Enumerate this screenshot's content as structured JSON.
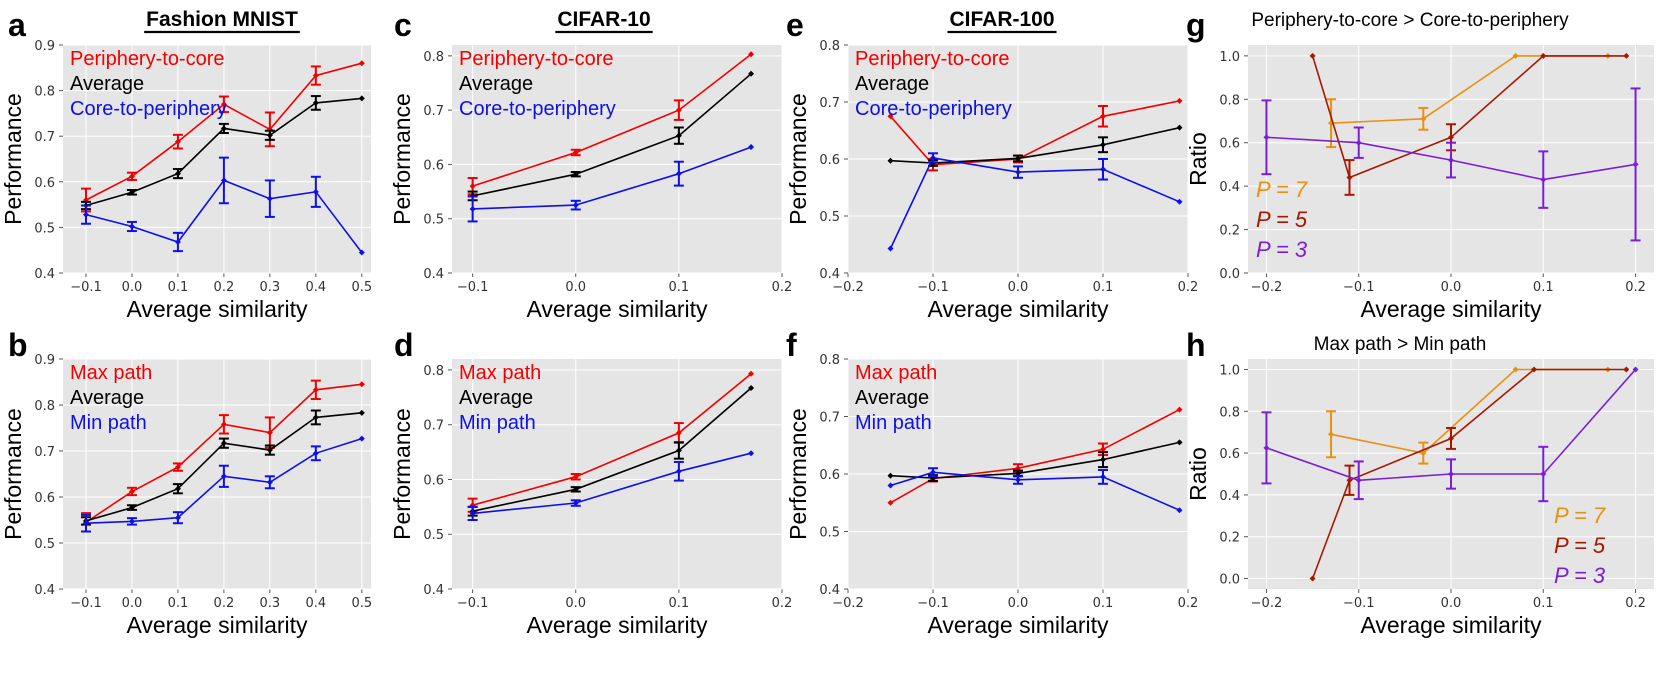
{
  "colors": {
    "red": "#f20000",
    "black": "#000000",
    "blue": "#0f0fe8",
    "p7": "#e8900f",
    "p5": "#a61900",
    "p3": "#7a1fd6"
  },
  "chart_data": [
    {
      "id": "a",
      "panel_letter": "a",
      "type": "line",
      "title": "Fashion MNIST",
      "title_style": "bold-underlined",
      "xlabel": "Average similarity",
      "ylabel": "Performance",
      "xlim": [
        -0.15,
        0.52
      ],
      "ylim": [
        0.4,
        0.9
      ],
      "xticks": [
        -0.1,
        0.0,
        0.1,
        0.2,
        0.3,
        0.4,
        0.5
      ],
      "xtick_labels": [
        "−0.1",
        "0.0",
        "0.1",
        "0.2",
        "0.3",
        "0.4",
        "0.5"
      ],
      "yticks": [
        0.4,
        0.5,
        0.6,
        0.7,
        0.8,
        0.9
      ],
      "ytick_labels": [
        "0.4",
        "0.5",
        "0.6",
        "0.7",
        "0.8",
        "0.9"
      ],
      "legend": {
        "position": "top-left",
        "items": [
          {
            "label": "Periphery-to-core",
            "color": "red"
          },
          {
            "label": "Average",
            "color": "black"
          },
          {
            "label": "Core-to-periphery",
            "color": "blue"
          }
        ]
      },
      "series": [
        {
          "name": "Periphery-to-core",
          "color": "red",
          "x": [
            -0.1,
            0.0,
            0.1,
            0.2,
            0.3,
            0.4,
            0.5
          ],
          "y": [
            0.56,
            0.612,
            0.688,
            0.77,
            0.715,
            0.833,
            0.86
          ],
          "err": [
            0.025,
            0.008,
            0.015,
            0.017,
            0.037,
            0.02,
            null
          ]
        },
        {
          "name": "Average",
          "color": "black",
          "x": [
            -0.1,
            0.0,
            0.1,
            0.2,
            0.3,
            0.4,
            0.5
          ],
          "y": [
            0.548,
            0.577,
            0.618,
            0.717,
            0.702,
            0.773,
            0.783
          ],
          "err": [
            0.008,
            0.005,
            0.01,
            0.01,
            0.01,
            0.015,
            null
          ]
        },
        {
          "name": "Core-to-periphery",
          "color": "blue",
          "x": [
            -0.1,
            0.0,
            0.1,
            0.2,
            0.3,
            0.4,
            0.5
          ],
          "y": [
            0.528,
            0.502,
            0.468,
            0.603,
            0.563,
            0.578,
            0.445
          ],
          "err": [
            0.02,
            0.01,
            0.02,
            0.05,
            0.04,
            0.033,
            null
          ]
        }
      ]
    },
    {
      "id": "b",
      "panel_letter": "b",
      "type": "line",
      "title": "",
      "title_style": "none",
      "xlabel": "Average similarity",
      "ylabel": "Performance",
      "xlim": [
        -0.15,
        0.52
      ],
      "ylim": [
        0.4,
        0.9
      ],
      "xticks": [
        -0.1,
        0.0,
        0.1,
        0.2,
        0.3,
        0.4,
        0.5
      ],
      "xtick_labels": [
        "−0.1",
        "0.0",
        "0.1",
        "0.2",
        "0.3",
        "0.4",
        "0.5"
      ],
      "yticks": [
        0.4,
        0.5,
        0.6,
        0.7,
        0.8,
        0.9
      ],
      "ytick_labels": [
        "0.4",
        "0.5",
        "0.6",
        "0.7",
        "0.8",
        "0.9"
      ],
      "legend": {
        "position": "top-left",
        "items": [
          {
            "label": "Max path",
            "color": "red"
          },
          {
            "label": "Average",
            "color": "black"
          },
          {
            "label": "Min path",
            "color": "blue"
          }
        ]
      },
      "series": [
        {
          "name": "Max path",
          "color": "red",
          "x": [
            -0.1,
            0.0,
            0.1,
            0.2,
            0.3,
            0.4,
            0.5
          ],
          "y": [
            0.545,
            0.612,
            0.665,
            0.758,
            0.74,
            0.833,
            0.845
          ],
          "err": [
            0.02,
            0.008,
            0.008,
            0.02,
            0.033,
            0.02,
            null
          ]
        },
        {
          "name": "Average",
          "color": "black",
          "x": [
            -0.1,
            0.0,
            0.1,
            0.2,
            0.3,
            0.4,
            0.5
          ],
          "y": [
            0.548,
            0.577,
            0.618,
            0.717,
            0.702,
            0.773,
            0.783
          ],
          "err": [
            0.008,
            0.005,
            0.01,
            0.01,
            0.01,
            0.015,
            null
          ]
        },
        {
          "name": "Min path",
          "color": "blue",
          "x": [
            -0.1,
            0.0,
            0.1,
            0.2,
            0.3,
            0.4,
            0.5
          ],
          "y": [
            0.543,
            0.547,
            0.555,
            0.645,
            0.632,
            0.695,
            0.727
          ],
          "err": [
            0.018,
            0.007,
            0.012,
            0.023,
            0.013,
            0.015,
            null
          ]
        }
      ]
    },
    {
      "id": "c",
      "panel_letter": "c",
      "type": "line",
      "title": "CIFAR-10",
      "title_style": "bold-underlined",
      "xlabel": "Average similarity",
      "ylabel": "Performance",
      "xlim": [
        -0.12,
        0.2
      ],
      "ylim": [
        0.4,
        0.82
      ],
      "xticks": [
        -0.1,
        0.0,
        0.1,
        0.2
      ],
      "xtick_labels": [
        "−0.1",
        "0.0",
        "0.1",
        "0.2"
      ],
      "yticks": [
        0.4,
        0.5,
        0.6,
        0.7,
        0.8
      ],
      "ytick_labels": [
        "0.4",
        "0.5",
        "0.6",
        "0.7",
        "0.8"
      ],
      "legend": {
        "position": "top-left",
        "items": [
          {
            "label": "Periphery-to-core",
            "color": "red"
          },
          {
            "label": "Average",
            "color": "black"
          },
          {
            "label": "Core-to-periphery",
            "color": "blue"
          }
        ]
      },
      "series": [
        {
          "name": "Periphery-to-core",
          "color": "red",
          "x": [
            -0.1,
            0.0,
            0.1,
            0.17
          ],
          "y": [
            0.56,
            0.622,
            0.7,
            0.803
          ],
          "err": [
            0.015,
            0.005,
            0.018,
            null
          ]
        },
        {
          "name": "Average",
          "color": "black",
          "x": [
            -0.1,
            0.0,
            0.1,
            0.17
          ],
          "y": [
            0.542,
            0.582,
            0.653,
            0.767
          ],
          "err": [
            0.008,
            0.004,
            0.015,
            null
          ]
        },
        {
          "name": "Core-to-periphery",
          "color": "blue",
          "x": [
            -0.1,
            0.0,
            0.1,
            0.17
          ],
          "y": [
            0.518,
            0.525,
            0.583,
            0.632
          ],
          "err": [
            0.023,
            0.008,
            0.022,
            null
          ]
        }
      ]
    },
    {
      "id": "d",
      "panel_letter": "d",
      "type": "line",
      "title": "",
      "title_style": "none",
      "xlabel": "Average similarity",
      "ylabel": "Performance",
      "xlim": [
        -0.12,
        0.2
      ],
      "ylim": [
        0.4,
        0.82
      ],
      "xticks": [
        -0.1,
        0.0,
        0.1,
        0.2
      ],
      "xtick_labels": [
        "−0.1",
        "0.0",
        "0.1",
        "0.2"
      ],
      "yticks": [
        0.4,
        0.5,
        0.6,
        0.7,
        0.8
      ],
      "ytick_labels": [
        "0.4",
        "0.5",
        "0.6",
        "0.7",
        "0.8"
      ],
      "legend": {
        "position": "top-left",
        "items": [
          {
            "label": "Max path",
            "color": "red"
          },
          {
            "label": "Average",
            "color": "black"
          },
          {
            "label": "Min path",
            "color": "blue"
          }
        ]
      },
      "series": [
        {
          "name": "Max path",
          "color": "red",
          "x": [
            -0.1,
            0.0,
            0.1,
            0.17
          ],
          "y": [
            0.553,
            0.605,
            0.685,
            0.793
          ],
          "err": [
            0.012,
            0.005,
            0.018,
            null
          ]
        },
        {
          "name": "Average",
          "color": "black",
          "x": [
            -0.1,
            0.0,
            0.1,
            0.17
          ],
          "y": [
            0.542,
            0.582,
            0.653,
            0.767
          ],
          "err": [
            0.008,
            0.004,
            0.015,
            null
          ]
        },
        {
          "name": "Min path",
          "color": "blue",
          "x": [
            -0.1,
            0.0,
            0.1,
            0.17
          ],
          "y": [
            0.538,
            0.557,
            0.615,
            0.648
          ],
          "err": [
            0.012,
            0.005,
            0.017,
            null
          ]
        }
      ]
    },
    {
      "id": "e",
      "panel_letter": "e",
      "type": "line",
      "title": "CIFAR-100",
      "title_style": "bold-underlined",
      "xlabel": "Average similarity",
      "ylabel": "Performance",
      "xlim": [
        -0.2,
        0.2
      ],
      "ylim": [
        0.4,
        0.8
      ],
      "xticks": [
        -0.2,
        -0.1,
        0.0,
        0.1,
        0.2
      ],
      "xtick_labels": [
        "−0.2",
        "−0.1",
        "0.0",
        "0.1",
        "0.2"
      ],
      "yticks": [
        0.4,
        0.5,
        0.6,
        0.7,
        0.8
      ],
      "ytick_labels": [
        "0.4",
        "0.5",
        "0.6",
        "0.7",
        "0.8"
      ],
      "legend": {
        "position": "top-left",
        "items": [
          {
            "label": "Periphery-to-core",
            "color": "red"
          },
          {
            "label": "Average",
            "color": "black"
          },
          {
            "label": "Core-to-periphery",
            "color": "blue"
          }
        ]
      },
      "series": [
        {
          "name": "Periphery-to-core",
          "color": "red",
          "x": [
            -0.15,
            -0.1,
            0.0,
            0.1,
            0.19
          ],
          "y": [
            0.675,
            0.59,
            0.6,
            0.675,
            0.702
          ],
          "err": [
            null,
            0.01,
            0.006,
            0.018,
            null
          ]
        },
        {
          "name": "Average",
          "color": "black",
          "x": [
            -0.15,
            -0.1,
            0.0,
            0.1,
            0.19
          ],
          "y": [
            0.597,
            0.593,
            0.601,
            0.625,
            0.655
          ],
          "err": [
            null,
            0.005,
            0.005,
            0.013,
            null
          ]
        },
        {
          "name": "Core-to-periphery",
          "color": "blue",
          "x": [
            -0.15,
            -0.1,
            0.0,
            0.1,
            0.19
          ],
          "y": [
            0.443,
            0.602,
            0.577,
            0.582,
            0.525
          ],
          "err": [
            null,
            0.008,
            0.01,
            0.018,
            null
          ]
        }
      ]
    },
    {
      "id": "f",
      "panel_letter": "f",
      "type": "line",
      "title": "",
      "title_style": "none",
      "xlabel": "Average similarity",
      "ylabel": "Performance",
      "xlim": [
        -0.2,
        0.2
      ],
      "ylim": [
        0.4,
        0.8
      ],
      "xticks": [
        -0.2,
        -0.1,
        0.0,
        0.1,
        0.2
      ],
      "xtick_labels": [
        "−0.2",
        "−0.1",
        "0.0",
        "0.1",
        "0.2"
      ],
      "yticks": [
        0.4,
        0.5,
        0.6,
        0.7,
        0.8
      ],
      "ytick_labels": [
        "0.4",
        "0.5",
        "0.6",
        "0.7",
        "0.8"
      ],
      "legend": {
        "position": "top-left",
        "items": [
          {
            "label": "Max path",
            "color": "red"
          },
          {
            "label": "Average",
            "color": "black"
          },
          {
            "label": "Min path",
            "color": "blue"
          }
        ]
      },
      "series": [
        {
          "name": "Max path",
          "color": "red",
          "x": [
            -0.15,
            -0.1,
            0.0,
            0.1,
            0.19
          ],
          "y": [
            0.55,
            0.592,
            0.61,
            0.643,
            0.712
          ],
          "err": [
            null,
            0.005,
            0.007,
            0.01,
            null
          ]
        },
        {
          "name": "Average",
          "color": "black",
          "x": [
            -0.15,
            -0.1,
            0.0,
            0.1,
            0.19
          ],
          "y": [
            0.597,
            0.593,
            0.601,
            0.625,
            0.655
          ],
          "err": [
            null,
            0.005,
            0.005,
            0.013,
            null
          ]
        },
        {
          "name": "Min path",
          "color": "blue",
          "x": [
            -0.15,
            -0.1,
            0.0,
            0.1,
            0.19
          ],
          "y": [
            0.58,
            0.603,
            0.59,
            0.595,
            0.537
          ],
          "err": [
            null,
            0.007,
            0.007,
            0.012,
            null
          ]
        }
      ]
    },
    {
      "id": "g",
      "panel_letter": "g",
      "type": "line",
      "title": "Periphery-to-core > Core-to-periphery",
      "title_style": "plain",
      "xlabel": "Average similarity",
      "ylabel": "Ratio",
      "xlim": [
        -0.22,
        0.22
      ],
      "ylim": [
        0.0,
        1.05
      ],
      "xticks": [
        -0.2,
        -0.1,
        0.0,
        0.1,
        0.2
      ],
      "xtick_labels": [
        "−0.2",
        "−0.1",
        "0.0",
        "0.1",
        "0.2"
      ],
      "yticks": [
        0.0,
        0.2,
        0.4,
        0.6,
        0.8,
        1.0
      ],
      "ytick_labels": [
        "0.0",
        "0.2",
        "0.4",
        "0.6",
        "0.8",
        "1.0"
      ],
      "legend": {
        "position": "bottom-left",
        "style": "italic-p",
        "items": [
          {
            "label": "P = 7",
            "color": "p7"
          },
          {
            "label": "P = 5",
            "color": "p5"
          },
          {
            "label": "P = 3",
            "color": "p3"
          }
        ]
      },
      "series": [
        {
          "name": "P = 7",
          "color": "p7",
          "x": [
            -0.13,
            -0.03,
            0.07,
            0.17
          ],
          "y": [
            0.69,
            0.71,
            1.0,
            1.0
          ],
          "err": [
            0.11,
            0.05,
            null,
            null
          ]
        },
        {
          "name": "P = 5",
          "color": "p5",
          "x": [
            -0.15,
            -0.11,
            0.0,
            0.1,
            0.19
          ],
          "y": [
            1.0,
            0.44,
            0.625,
            1.0,
            1.0
          ],
          "err": [
            null,
            0.08,
            0.06,
            null,
            null
          ]
        },
        {
          "name": "P = 3",
          "color": "p3",
          "x": [
            -0.2,
            -0.1,
            0.0,
            0.1,
            0.2
          ],
          "y": [
            0.625,
            0.6,
            0.52,
            0.43,
            0.5
          ],
          "err": [
            0.17,
            0.07,
            0.08,
            0.13,
            0.35
          ]
        }
      ]
    },
    {
      "id": "h",
      "panel_letter": "h",
      "type": "line",
      "title": "Max path > Min path",
      "title_style": "plain",
      "xlabel": "Average similarity",
      "ylabel": "Ratio",
      "xlim": [
        -0.22,
        0.22
      ],
      "ylim": [
        -0.05,
        1.05
      ],
      "xticks": [
        -0.2,
        -0.1,
        0.0,
        0.1,
        0.2
      ],
      "xtick_labels": [
        "−0.2",
        "−0.1",
        "0.0",
        "0.1",
        "0.2"
      ],
      "yticks": [
        0.0,
        0.2,
        0.4,
        0.6,
        0.8,
        1.0
      ],
      "ytick_labels": [
        "0.0",
        "0.2",
        "0.4",
        "0.6",
        "0.8",
        "1.0"
      ],
      "legend": {
        "position": "bottom-right",
        "style": "italic-p",
        "items": [
          {
            "label": "P = 7",
            "color": "p7"
          },
          {
            "label": "P = 5",
            "color": "p5"
          },
          {
            "label": "P = 3",
            "color": "p3"
          }
        ]
      },
      "series": [
        {
          "name": "P = 7",
          "color": "p7",
          "x": [
            -0.13,
            -0.03,
            0.07,
            0.17
          ],
          "y": [
            0.69,
            0.6,
            1.0,
            1.0
          ],
          "err": [
            0.11,
            0.05,
            null,
            null
          ]
        },
        {
          "name": "P = 5",
          "color": "p5",
          "x": [
            -0.15,
            -0.11,
            0.0,
            0.09,
            0.19
          ],
          "y": [
            0.0,
            0.47,
            0.67,
            1.0,
            1.0
          ],
          "err": [
            null,
            0.07,
            0.05,
            null,
            null
          ]
        },
        {
          "name": "P = 3",
          "color": "p3",
          "x": [
            -0.2,
            -0.1,
            0.0,
            0.1,
            0.2
          ],
          "y": [
            0.625,
            0.47,
            0.5,
            0.5,
            1.0
          ],
          "err": [
            0.17,
            0.09,
            0.07,
            0.13,
            null
          ]
        }
      ]
    }
  ]
}
